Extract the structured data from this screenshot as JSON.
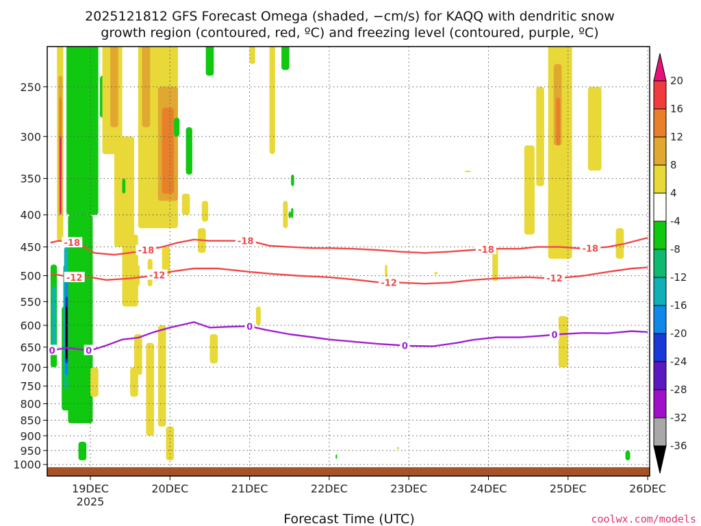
{
  "title": {
    "line1": "2025121812 GFS Forecast Omega (shaded, −cm/s) for KAQQ with dendritic snow",
    "line2": "growth region (contoured, red, ºC) and freezing level (contoured, purple, ºC)"
  },
  "credit": "coolwx.com/models",
  "chart_data": {
    "type": "heatmap",
    "title": "2025121812 GFS Forecast Omega (shaded, −cm/s) for KAQQ with dendritic snow growth region (contoured, red, ºC) and freezing level (contoured, purple, ºC)",
    "xlabel": "Forecast Time (UTC)",
    "ylabel": "",
    "x_ticks": [
      {
        "label": "19DEC",
        "sub": "2025",
        "t": 0
      },
      {
        "label": "20DEC",
        "sub": "",
        "t": 1
      },
      {
        "label": "21DEC",
        "sub": "",
        "t": 2
      },
      {
        "label": "22DEC",
        "sub": "",
        "t": 3
      },
      {
        "label": "23DEC",
        "sub": "",
        "t": 4
      },
      {
        "label": "24DEC",
        "sub": "",
        "t": 5
      },
      {
        "label": "25DEC",
        "sub": "",
        "t": 6
      },
      {
        "label": "26DEC",
        "sub": "",
        "t": 7
      }
    ],
    "xlim": [
      -0.5,
      7
    ],
    "y_ticks": [
      250,
      300,
      350,
      400,
      450,
      500,
      550,
      600,
      650,
      700,
      750,
      800,
      850,
      900,
      950,
      1000
    ],
    "ylim_hPa": [
      200,
      1025
    ],
    "grid": true,
    "colorbar": {
      "labels": [
        20,
        16,
        12,
        8,
        4,
        -4,
        -8,
        -12,
        -16,
        -20,
        -24,
        -28,
        -32,
        -36
      ],
      "bands": [
        {
          "lo": 20,
          "hi": null,
          "color": "#e8107a"
        },
        {
          "lo": 16,
          "hi": 20,
          "color": "#f03c3c"
        },
        {
          "lo": 12,
          "hi": 16,
          "color": "#e8802a"
        },
        {
          "lo": 8,
          "hi": 12,
          "color": "#e0a830"
        },
        {
          "lo": 4,
          "hi": 8,
          "color": "#e8d838"
        },
        {
          "lo": -4,
          "hi": 4,
          "color": "#ffffff"
        },
        {
          "lo": -8,
          "hi": -4,
          "color": "#10c810"
        },
        {
          "lo": -12,
          "hi": -8,
          "color": "#10b870"
        },
        {
          "lo": -16,
          "hi": -12,
          "color": "#10b0b8"
        },
        {
          "lo": -20,
          "hi": -16,
          "color": "#1088e8"
        },
        {
          "lo": -24,
          "hi": -20,
          "color": "#1838d8"
        },
        {
          "lo": -28,
          "hi": -24,
          "color": "#5a18c0"
        },
        {
          "lo": -32,
          "hi": -28,
          "color": "#a010c8"
        },
        {
          "lo": -36,
          "hi": -32,
          "color": "#a8a8a8"
        },
        {
          "lo": null,
          "hi": -36,
          "color": "#000000"
        }
      ]
    },
    "contours": [
      {
        "name": "-18",
        "color": "#f04848",
        "label": "-18",
        "label_t": [
          -0.23,
          0.7,
          1.95,
          4.97,
          6.28
        ],
        "points": [
          [
            -0.5,
            443
          ],
          [
            -0.4,
            440
          ],
          [
            -0.25,
            442
          ],
          [
            -0.1,
            448
          ],
          [
            0.05,
            460
          ],
          [
            0.3,
            463
          ],
          [
            0.6,
            458
          ],
          [
            0.9,
            450
          ],
          [
            1.1,
            443
          ],
          [
            1.3,
            438
          ],
          [
            1.5,
            440
          ],
          [
            1.75,
            440
          ],
          [
            2.0,
            440
          ],
          [
            2.25,
            448
          ],
          [
            2.5,
            450
          ],
          [
            2.8,
            452
          ],
          [
            3.0,
            452
          ],
          [
            3.3,
            453
          ],
          [
            3.6,
            455
          ],
          [
            3.9,
            458
          ],
          [
            4.2,
            460
          ],
          [
            4.5,
            458
          ],
          [
            4.8,
            455
          ],
          [
            5.1,
            453
          ],
          [
            5.4,
            453
          ],
          [
            5.6,
            450
          ],
          [
            5.9,
            450
          ],
          [
            6.2,
            453
          ],
          [
            6.5,
            450
          ],
          [
            6.7,
            445
          ],
          [
            7.0,
            435
          ]
        ]
      },
      {
        "name": "-12",
        "color": "#f04848",
        "label": "-12",
        "label_t": [
          -0.2,
          0.84,
          3.75,
          5.83
        ],
        "points": [
          [
            -0.5,
            496
          ],
          [
            -0.35,
            500
          ],
          [
            -0.2,
            503
          ],
          [
            0.0,
            503
          ],
          [
            0.2,
            508
          ],
          [
            0.5,
            505
          ],
          [
            0.8,
            500
          ],
          [
            1.0,
            493
          ],
          [
            1.3,
            487
          ],
          [
            1.6,
            487
          ],
          [
            1.8,
            490
          ],
          [
            2.0,
            493
          ],
          [
            2.3,
            497
          ],
          [
            2.6,
            500
          ],
          [
            3.0,
            503
          ],
          [
            3.3,
            507
          ],
          [
            3.6,
            512
          ],
          [
            3.9,
            513
          ],
          [
            4.2,
            515
          ],
          [
            4.5,
            513
          ],
          [
            4.8,
            508
          ],
          [
            5.1,
            505
          ],
          [
            5.5,
            503
          ],
          [
            5.8,
            505
          ],
          [
            6.0,
            503
          ],
          [
            6.2,
            500
          ],
          [
            6.5,
            493
          ],
          [
            6.8,
            487
          ],
          [
            7.0,
            485
          ]
        ]
      },
      {
        "name": "0",
        "color": "#a020d0",
        "label": "0",
        "label_t": [
          -0.48,
          -0.02,
          2.0,
          3.95,
          5.83
        ],
        "points": [
          [
            -0.5,
            658
          ],
          [
            -0.3,
            652
          ],
          [
            0.0,
            658
          ],
          [
            0.2,
            646
          ],
          [
            0.4,
            632
          ],
          [
            0.6,
            628
          ],
          [
            0.8,
            615
          ],
          [
            1.0,
            605
          ],
          [
            1.2,
            597
          ],
          [
            1.3,
            593
          ],
          [
            1.5,
            605
          ],
          [
            1.75,
            603
          ],
          [
            2.0,
            602
          ],
          [
            2.2,
            610
          ],
          [
            2.5,
            620
          ],
          [
            2.8,
            627
          ],
          [
            3.0,
            632
          ],
          [
            3.3,
            637
          ],
          [
            3.6,
            642
          ],
          [
            4.0,
            647
          ],
          [
            4.3,
            648
          ],
          [
            4.6,
            640
          ],
          [
            4.8,
            633
          ],
          [
            5.1,
            627
          ],
          [
            5.4,
            627
          ],
          [
            5.7,
            623
          ],
          [
            5.9,
            620
          ],
          [
            6.2,
            617
          ],
          [
            6.5,
            618
          ],
          [
            6.8,
            613
          ],
          [
            7.0,
            615
          ]
        ]
      }
    ],
    "shaded_regions": [
      {
        "band": 4,
        "t": [
          -0.42,
          -0.34
        ],
        "p": [
          210,
          440
        ]
      },
      {
        "band": 3,
        "t": [
          -0.4,
          -0.35
        ],
        "p": [
          240,
          400
        ]
      },
      {
        "band": 2,
        "t": [
          -0.39,
          -0.36
        ],
        "p": [
          260,
          350
        ]
      },
      {
        "band": 0,
        "t": [
          -0.385,
          -0.365
        ],
        "p": [
          300,
          400
        ]
      },
      {
        "band": 6,
        "t": [
          -0.5,
          -0.42
        ],
        "p": [
          480,
          700
        ]
      },
      {
        "band": 8,
        "t": [
          -0.48,
          -0.43
        ],
        "p": [
          520,
          660
        ]
      },
      {
        "band": 6,
        "t": [
          -0.36,
          -0.17
        ],
        "p": [
          560,
          820
        ]
      },
      {
        "band": 7,
        "t": [
          -0.34,
          -0.24
        ],
        "p": [
          480,
          760
        ]
      },
      {
        "band": 8,
        "t": [
          -0.33,
          -0.27
        ],
        "p": [
          450,
          720
        ]
      },
      {
        "band": 9,
        "t": [
          -0.32,
          -0.27
        ],
        "p": [
          500,
          720
        ]
      },
      {
        "band": 10,
        "t": [
          -0.315,
          -0.28
        ],
        "p": [
          540,
          690
        ]
      },
      {
        "band": 14,
        "t": [
          -0.31,
          -0.29
        ],
        "p": [
          560,
          680
        ]
      },
      {
        "band": 6,
        "t": [
          -0.3,
          0.1
        ],
        "p": [
          210,
          400
        ]
      },
      {
        "band": 6,
        "t": [
          -0.28,
          0.03
        ],
        "p": [
          400,
          860
        ]
      },
      {
        "band": 6,
        "t": [
          -0.15,
          -0.05
        ],
        "p": [
          920,
          985
        ]
      },
      {
        "band": 6,
        "t": [
          0.12,
          0.2
        ],
        "p": [
          240,
          280
        ]
      },
      {
        "band": 6,
        "t": [
          0.25,
          0.35
        ],
        "p": [
          220,
          290
        ]
      },
      {
        "band": 6,
        "t": [
          0.35,
          0.45
        ],
        "p": [
          310,
          360
        ]
      },
      {
        "band": 6,
        "t": [
          0.7,
          0.78
        ],
        "p": [
          210,
          240
        ]
      },
      {
        "band": 6,
        "t": [
          1.2,
          1.28
        ],
        "p": [
          290,
          345
        ]
      },
      {
        "band": 6,
        "t": [
          1.45,
          1.55
        ],
        "p": [
          200,
          240
        ]
      },
      {
        "band": 6,
        "t": [
          2.4,
          2.5
        ],
        "p": [
          200,
          235
        ]
      },
      {
        "band": 6,
        "t": [
          2.52,
          2.56
        ],
        "p": [
          345,
          360
        ]
      },
      {
        "band": 6,
        "t": [
          2.49,
          2.52
        ],
        "p": [
          395,
          405
        ]
      },
      {
        "band": 6,
        "t": [
          -0.1,
          -0.07
        ],
        "p": [
          395,
          405
        ]
      },
      {
        "band": 6,
        "t": [
          2.52,
          2.55
        ],
        "p": [
          390,
          405
        ]
      },
      {
        "band": 6,
        "t": [
          6.72,
          6.78
        ],
        "p": [
          950,
          985
        ]
      },
      {
        "band": 6,
        "t": [
          3.08,
          3.1
        ],
        "p": [
          963,
          980
        ]
      },
      {
        "band": 4,
        "t": [
          0.15,
          0.4
        ],
        "p": [
          200,
          320
        ]
      },
      {
        "band": 3,
        "t": [
          0.25,
          0.35
        ],
        "p": [
          210,
          290
        ]
      },
      {
        "band": 4,
        "t": [
          0.3,
          0.55
        ],
        "p": [
          300,
          450
        ]
      },
      {
        "band": 4,
        "t": [
          0.6,
          1.1
        ],
        "p": [
          210,
          420
        ]
      },
      {
        "band": 3,
        "t": [
          0.65,
          0.75
        ],
        "p": [
          210,
          290
        ]
      },
      {
        "band": 3,
        "t": [
          0.85,
          1.1
        ],
        "p": [
          250,
          380
        ]
      },
      {
        "band": 2,
        "t": [
          0.9,
          1.05
        ],
        "p": [
          270,
          370
        ]
      },
      {
        "band": 4,
        "t": [
          0.4,
          0.6
        ],
        "p": [
          430,
          560
        ]
      },
      {
        "band": 4,
        "t": [
          0.55,
          0.65
        ],
        "p": [
          620,
          720
        ]
      },
      {
        "band": 4,
        "t": [
          0.7,
          0.8
        ],
        "p": [
          640,
          900
        ]
      },
      {
        "band": 4,
        "t": [
          0.85,
          0.95
        ],
        "p": [
          600,
          870
        ]
      },
      {
        "band": 4,
        "t": [
          0.95,
          1.05
        ],
        "p": [
          870,
          985
        ]
      },
      {
        "band": 4,
        "t": [
          1.35,
          1.45
        ],
        "p": [
          420,
          460
        ]
      },
      {
        "band": 4,
        "t": [
          1.5,
          1.6
        ],
        "p": [
          620,
          690
        ]
      },
      {
        "band": 4,
        "t": [
          0.5,
          0.6
        ],
        "p": [
          700,
          780
        ]
      },
      {
        "band": 4,
        "t": [
          0.36,
          0.44
        ],
        "p": [
          330,
          390
        ]
      },
      {
        "band": 4,
        "t": [
          0.55,
          0.62
        ],
        "p": [
          480,
          520
        ]
      },
      {
        "band": 4,
        "t": [
          0.9,
          1.0
        ],
        "p": [
          450,
          500
        ]
      },
      {
        "band": 4,
        "t": [
          0.72,
          0.78
        ],
        "p": [
          470,
          520
        ]
      },
      {
        "band": 4,
        "t": [
          1.4,
          1.48
        ],
        "p": [
          380,
          410
        ]
      },
      {
        "band": 4,
        "t": [
          1.15,
          1.25
        ],
        "p": [
          370,
          400
        ]
      },
      {
        "band": 4,
        "t": [
          0.0,
          0.1
        ],
        "p": [
          700,
          780
        ]
      },
      {
        "band": 4,
        "t": [
          2.25,
          2.32
        ],
        "p": [
          210,
          320
        ]
      },
      {
        "band": 4,
        "t": [
          2.42,
          2.48
        ],
        "p": [
          380,
          420
        ]
      },
      {
        "band": 4,
        "t": [
          2.0,
          2.07
        ],
        "p": [
          200,
          230
        ]
      },
      {
        "band": 4,
        "t": [
          2.08,
          2.14
        ],
        "p": [
          560,
          600
        ]
      },
      {
        "band": 4,
        "t": [
          3.85,
          3.88
        ],
        "p": [
          938,
          945
        ]
      },
      {
        "band": 4,
        "t": [
          3.7,
          3.73
        ],
        "p": [
          480,
          520
        ]
      },
      {
        "band": 4,
        "t": [
          4.32,
          4.36
        ],
        "p": [
          493,
          498
        ]
      },
      {
        "band": 4,
        "t": [
          4.7,
          4.78
        ],
        "p": [
          340,
          342
        ]
      },
      {
        "band": 4,
        "t": [
          5.05,
          5.12
        ],
        "p": [
          450,
          510
        ]
      },
      {
        "band": 4,
        "t": [
          5.45,
          5.58
        ],
        "p": [
          310,
          430
        ]
      },
      {
        "band": 4,
        "t": [
          5.6,
          5.7
        ],
        "p": [
          250,
          360
        ]
      },
      {
        "band": 4,
        "t": [
          5.75,
          6.05
        ],
        "p": [
          200,
          470
        ]
      },
      {
        "band": 4,
        "t": [
          6.25,
          6.42
        ],
        "p": [
          250,
          340
        ]
      },
      {
        "band": 4,
        "t": [
          6.6,
          6.7
        ],
        "p": [
          420,
          470
        ]
      },
      {
        "band": 4,
        "t": [
          5.88,
          6.0
        ],
        "p": [
          580,
          700
        ]
      },
      {
        "band": 3,
        "t": [
          5.82,
          5.92
        ],
        "p": [
          230,
          310
        ]
      },
      {
        "band": 2,
        "t": [
          5.85,
          5.9
        ],
        "p": [
          260,
          310
        ]
      },
      {
        "band": 6,
        "t": [
          0.4,
          0.44
        ],
        "p": [
          350,
          370
        ]
      },
      {
        "band": 6,
        "t": [
          1.05,
          1.12
        ],
        "p": [
          280,
          300
        ]
      }
    ],
    "ground": {
      "color": "#a8522a",
      "p": [
        1010,
        1025
      ]
    }
  }
}
